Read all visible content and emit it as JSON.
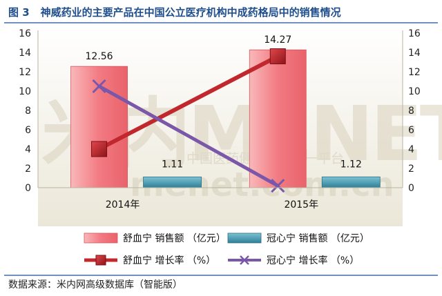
{
  "title": {
    "figure_no": "图 3",
    "text": "神威药业的主要产品在中国公立医疗机构中成药格局中的销售情况"
  },
  "source": "数据来源：米内网高级数据库（智能版）",
  "watermark": {
    "logo": "米内MENET",
    "slogan": "中国医药健康信息第一平台",
    "url": "menet.com.cn"
  },
  "colors": {
    "bar1": "#f4868c",
    "bar2": "#3b8fa6",
    "line1": "#c0282d",
    "line2": "#7a57a8",
    "frame": "#6f8fc0"
  },
  "chart_data": {
    "type": "bar",
    "categories": [
      "2014年",
      "2015年"
    ],
    "series": [
      {
        "name": "舒血宁 销售额 （亿元）",
        "kind": "bar",
        "axis": "left",
        "values": [
          12.56,
          14.27
        ]
      },
      {
        "name": "冠心宁 销售额 （亿元）",
        "kind": "bar",
        "axis": "left",
        "values": [
          1.11,
          1.12
        ]
      },
      {
        "name": "舒血宁 增长率 （%）",
        "kind": "line",
        "axis": "right",
        "values": [
          4.0,
          13.6
        ]
      },
      {
        "name": "冠心宁 增长率 （%）",
        "kind": "line",
        "axis": "right",
        "values": [
          10.5,
          0.2
        ]
      }
    ],
    "data_labels": [
      {
        "series": 0,
        "index": 0,
        "text": "12.56"
      },
      {
        "series": 0,
        "index": 1,
        "text": "14.27"
      },
      {
        "series": 1,
        "index": 0,
        "text": "1.11"
      },
      {
        "series": 1,
        "index": 1,
        "text": "1.12"
      }
    ],
    "yticks": [
      "0",
      "2",
      "4",
      "6",
      "8",
      "10",
      "12",
      "14",
      "16"
    ],
    "ylim": [
      0,
      16
    ],
    "y2lim": [
      0,
      16
    ],
    "legend_position": "bottom",
    "grid": false
  }
}
